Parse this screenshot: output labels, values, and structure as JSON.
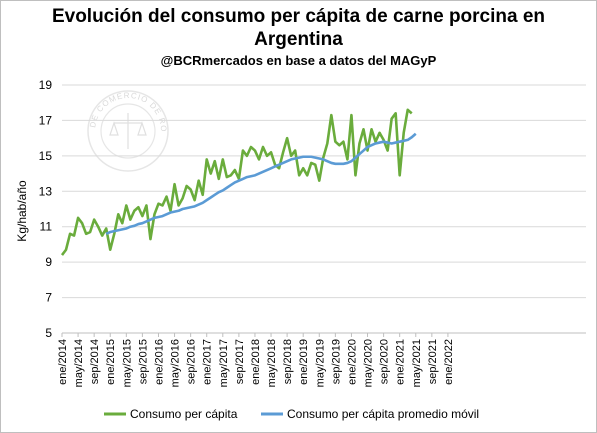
{
  "chart_data": {
    "type": "line",
    "title_line1": "Evolución del consumo per cápita de carne porcina en",
    "title_line2": "Argentina",
    "subtitle": "@BCRmercados en base a datos del MAGyP",
    "ylabel": "Kg/hab/año",
    "ylim": [
      5,
      19
    ],
    "yticks": [
      "5",
      "7",
      "9",
      "11",
      "13",
      "15",
      "17",
      "19"
    ],
    "xticks": [
      "ene/2014",
      "may/2014",
      "sep/2014",
      "ene/2015",
      "may/2015",
      "sep/2015",
      "ene/2016",
      "may/2016",
      "sep/2016",
      "ene/2017",
      "may/2017",
      "sep/2017",
      "ene/2018",
      "may/2018",
      "sep/2018",
      "ene/2019",
      "may/2019",
      "sep/2019",
      "ene/2020",
      "may/2020",
      "sep/2020",
      "ene/2021",
      "may/2021",
      "sep/2021",
      "ene/2022"
    ],
    "watermark_text": "BOLSA DE COMERCIO DE ROSARIO",
    "grid": "horizontal",
    "legend_position": "bottom",
    "colors": {
      "series1": "#6aac3c",
      "series2": "#5b9bd5",
      "grid": "#d9d9d9"
    },
    "series": [
      {
        "name": "Consumo per cápita",
        "values": [
          9.4,
          9.7,
          10.6,
          10.5,
          11.5,
          11.2,
          10.6,
          10.7,
          11.4,
          11.0,
          10.5,
          10.9,
          9.7,
          10.6,
          11.7,
          11.2,
          12.2,
          11.4,
          11.9,
          12.1,
          11.6,
          12.2,
          10.3,
          11.7,
          12.3,
          12.2,
          12.7,
          11.9,
          13.4,
          12.2,
          12.6,
          13.3,
          13.1,
          12.5,
          13.6,
          12.8,
          14.8,
          14.0,
          14.7,
          13.7,
          14.8,
          13.8,
          13.9,
          14.2,
          13.7,
          15.3,
          15.0,
          15.5,
          15.3,
          14.8,
          15.5,
          15.0,
          15.2,
          14.5,
          14.3,
          15.2,
          16.0,
          15.0,
          15.3,
          13.9,
          14.3,
          13.9,
          14.6,
          14.5,
          13.6,
          14.9,
          15.7,
          17.3,
          15.8,
          15.6,
          15.8,
          14.8,
          17.3,
          13.9,
          15.7,
          16.5,
          15.3,
          16.5,
          15.8,
          16.3,
          15.9,
          15.3,
          17.1,
          17.4,
          13.9,
          16.3,
          17.6,
          17.4
        ]
      },
      {
        "name": "Consumo per cápita promedio móvil",
        "start_index": 11,
        "values": [
          10.6,
          10.7,
          10.75,
          10.8,
          10.85,
          10.9,
          11.0,
          11.05,
          11.15,
          11.2,
          11.3,
          11.4,
          11.5,
          11.55,
          11.6,
          11.7,
          11.8,
          11.85,
          11.9,
          12.0,
          12.05,
          12.1,
          12.15,
          12.25,
          12.35,
          12.5,
          12.65,
          12.8,
          12.95,
          13.05,
          13.2,
          13.35,
          13.5,
          13.6,
          13.7,
          13.8,
          13.85,
          13.9,
          14.0,
          14.1,
          14.2,
          14.3,
          14.4,
          14.5,
          14.6,
          14.7,
          14.8,
          14.85,
          14.9,
          14.95,
          14.95,
          14.95,
          14.9,
          14.85,
          14.8,
          14.7,
          14.6,
          14.55,
          14.55,
          14.55,
          14.6,
          14.7,
          14.9,
          15.1,
          15.3,
          15.5,
          15.6,
          15.7,
          15.75,
          15.8,
          15.75,
          15.7,
          15.75,
          15.8,
          15.85,
          15.9,
          16.05,
          16.25
        ]
      }
    ]
  }
}
